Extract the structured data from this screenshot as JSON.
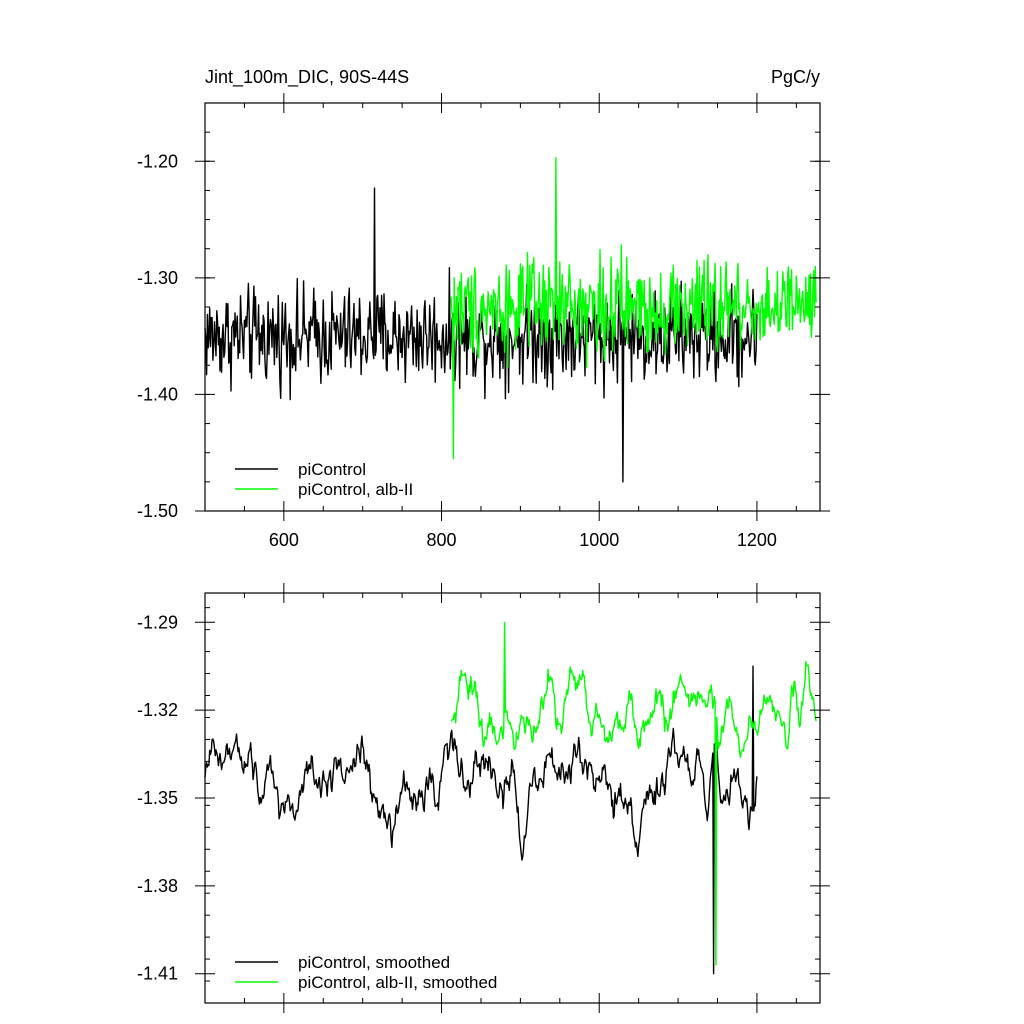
{
  "chart_data": [
    {
      "type": "line",
      "title": "Jint_100m_DIC, 90S-44S",
      "units": "PgC/y",
      "xlim": [
        500,
        1280
      ],
      "ylim": [
        -1.5,
        -1.15
      ],
      "x_ticks": [
        600,
        800,
        1000,
        1200
      ],
      "x_tick_labels": [
        "600",
        "800",
        "1000",
        "1200"
      ],
      "y_ticks": [
        -1.2,
        -1.3,
        -1.4,
        -1.5
      ],
      "y_tick_labels": [
        "-1.20",
        "-1.30",
        "-1.40",
        "-1.50"
      ],
      "legend_position": "bottom-left",
      "series": [
        {
          "name": "piControl",
          "color": "#000000",
          "x_range": [
            500,
            1200
          ],
          "mean": -1.35,
          "amplitude": 0.035,
          "peak": -1.223,
          "peak_at": 715,
          "trough": -1.475,
          "trough_at": 1030
        },
        {
          "name": "piControl, alb-II",
          "color": "#00ff00",
          "x_range": [
            812,
            1275
          ],
          "mean": -1.325,
          "amplitude": 0.035,
          "peak": -1.197,
          "peak_at": 945,
          "trough": -1.455,
          "trough_at": 815
        }
      ]
    },
    {
      "type": "line",
      "xlim": [
        500,
        1280
      ],
      "ylim": [
        -1.42,
        -1.28
      ],
      "x_ticks": [
        600,
        800,
        1000,
        1200
      ],
      "y_ticks": [
        -1.29,
        -1.32,
        -1.35,
        -1.38,
        -1.41
      ],
      "y_tick_labels": [
        "-1.29",
        "-1.32",
        "-1.35",
        "-1.38",
        "-1.41"
      ],
      "legend_position": "bottom-left",
      "series": [
        {
          "name": "piControl, smoothed",
          "color": "#000000",
          "x_range": [
            500,
            1200
          ],
          "mean": -1.345,
          "amplitude": 0.015,
          "peak": -1.305,
          "peak_at": 1195,
          "trough": -1.41,
          "trough_at": 1145
        },
        {
          "name": "piControl, alb-II, smoothed",
          "color": "#00ff00",
          "x_range": [
            812,
            1275
          ],
          "mean": -1.32,
          "amplitude": 0.013,
          "peak": -1.29,
          "peak_at": 880,
          "trough": -1.407,
          "trough_at": 1148
        }
      ]
    }
  ]
}
